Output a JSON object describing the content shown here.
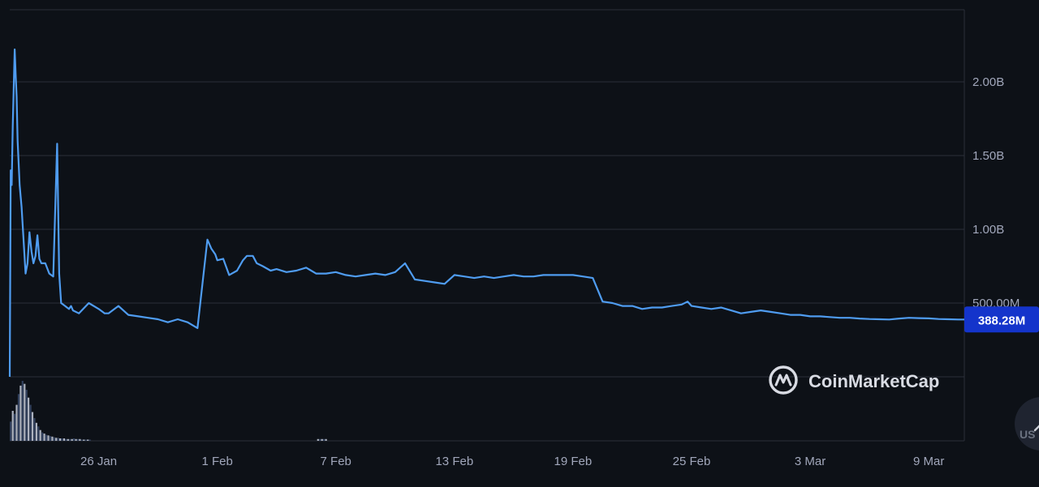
{
  "chart_data": {
    "type": "line",
    "y_ticks": [
      {
        "value": 500000000,
        "label": "500.00M"
      },
      {
        "value": 1000000000,
        "label": "1.00B"
      },
      {
        "value": 1500000000,
        "label": "1.50B"
      },
      {
        "value": 2000000000,
        "label": "2.00B"
      }
    ],
    "x_ticks": [
      {
        "day": 5,
        "label": "26 Jan"
      },
      {
        "day": 11,
        "label": "1 Feb"
      },
      {
        "day": 17,
        "label": "7 Feb"
      },
      {
        "day": 23,
        "label": "13 Feb"
      },
      {
        "day": 29,
        "label": "19 Feb"
      },
      {
        "day": 35,
        "label": "25 Feb"
      },
      {
        "day": 41,
        "label": "3 Mar"
      },
      {
        "day": 47,
        "label": "9 Mar"
      }
    ],
    "ylim": [
      0,
      2500000000
    ],
    "xlim": [
      0.5,
      48.8
    ],
    "grid": true,
    "line_color": "#4f9cf0",
    "last_value_label": "388.28M",
    "last_value": 388280000,
    "series": [
      {
        "x": [
          0.5,
          0.55,
          0.6,
          0.65,
          0.75,
          0.8,
          0.85,
          0.9,
          1.0,
          1.1,
          1.3,
          1.4,
          1.5,
          1.6,
          1.7,
          1.8,
          1.9,
          2.0,
          2.1,
          2.3,
          2.5,
          2.7,
          2.9,
          3.0,
          3.1,
          3.2,
          3.3,
          3.4,
          3.5,
          3.6,
          3.7,
          4.0,
          4.5,
          5.0,
          5.3,
          5.5,
          6.0,
          6.5,
          7.0,
          7.5,
          8.0,
          8.5,
          9.0,
          9.5,
          10.0,
          10.5,
          10.7,
          10.9,
          11.0,
          11.3,
          11.6,
          12.0,
          12.3,
          12.5,
          12.8,
          13.0,
          13.3,
          13.7,
          14.0,
          14.5,
          15.0,
          15.5,
          16.0,
          16.5,
          17.0,
          17.5,
          18.0,
          18.5,
          19.0,
          19.5,
          20.0,
          20.5,
          21.0,
          21.5,
          22.0,
          22.5,
          23.0,
          23.5,
          24.0,
          24.5,
          25.0,
          25.5,
          26.0,
          26.5,
          27.0,
          27.5,
          28.0,
          28.5,
          29.0,
          29.5,
          30.0,
          30.5,
          31.0,
          31.5,
          32.0,
          32.5,
          33.0,
          33.5,
          34.0,
          34.5,
          34.8,
          35.0,
          35.5,
          36.0,
          36.5,
          37.0,
          37.5,
          38.0,
          38.5,
          39.0,
          39.5,
          40.0,
          40.5,
          41.0,
          41.5,
          42.0,
          42.5,
          43.0,
          43.5,
          44.0,
          44.5,
          45.0,
          45.5,
          46.0,
          46.5,
          47.0,
          47.5,
          48.0,
          48.5,
          48.8
        ],
        "y": [
          0,
          1400000000,
          1300000000,
          1700000000,
          2220000000,
          2050000000,
          1900000000,
          1600000000,
          1300000000,
          1150000000,
          700000000,
          770000000,
          980000000,
          850000000,
          770000000,
          820000000,
          960000000,
          800000000,
          770000000,
          770000000,
          700000000,
          680000000,
          1580000000,
          700000000,
          500000000,
          490000000,
          480000000,
          470000000,
          460000000,
          480000000,
          450000000,
          430000000,
          500000000,
          460000000,
          430000000,
          430000000,
          480000000,
          420000000,
          410000000,
          400000000,
          390000000,
          370000000,
          390000000,
          370000000,
          330000000,
          930000000,
          870000000,
          830000000,
          790000000,
          800000000,
          690000000,
          720000000,
          790000000,
          820000000,
          820000000,
          770000000,
          750000000,
          720000000,
          730000000,
          710000000,
          720000000,
          740000000,
          700000000,
          700000000,
          710000000,
          690000000,
          680000000,
          690000000,
          700000000,
          690000000,
          710000000,
          770000000,
          660000000,
          650000000,
          640000000,
          630000000,
          690000000,
          680000000,
          670000000,
          680000000,
          670000000,
          680000000,
          690000000,
          680000000,
          680000000,
          690000000,
          690000000,
          690000000,
          690000000,
          680000000,
          670000000,
          510000000,
          500000000,
          480000000,
          480000000,
          460000000,
          470000000,
          470000000,
          480000000,
          490000000,
          510000000,
          480000000,
          470000000,
          460000000,
          470000000,
          450000000,
          430000000,
          440000000,
          450000000,
          440000000,
          430000000,
          420000000,
          420000000,
          410000000,
          410000000,
          405000000,
          400000000,
          400000000,
          395000000,
          392000000,
          390000000,
          388280000,
          395000000,
          400000000,
          398000000,
          396000000,
          392000000,
          390000000,
          388280000,
          388280000
        ]
      }
    ],
    "volume": {
      "x": [
        0.55,
        0.65,
        0.75,
        0.85,
        0.95,
        1.05,
        1.15,
        1.25,
        1.35,
        1.45,
        1.55,
        1.65,
        1.75,
        1.85,
        1.95,
        2.05,
        2.15,
        2.25,
        2.35,
        2.45,
        2.55,
        2.65,
        2.75,
        2.85,
        2.95,
        3.05,
        3.15,
        3.25,
        3.35,
        3.45,
        3.55,
        3.65,
        3.75,
        3.85,
        3.95,
        4.05,
        4.15,
        4.25,
        4.35,
        4.45,
        4.55,
        16.1,
        16.2,
        16.3,
        16.4,
        16.5
      ],
      "y": [
        0.32,
        0.5,
        0.45,
        0.6,
        0.78,
        0.92,
        1.0,
        0.95,
        0.85,
        0.72,
        0.6,
        0.48,
        0.38,
        0.3,
        0.24,
        0.18,
        0.14,
        0.12,
        0.1,
        0.09,
        0.08,
        0.07,
        0.06,
        0.05,
        0.05,
        0.04,
        0.04,
        0.04,
        0.03,
        0.03,
        0.03,
        0.03,
        0.04,
        0.03,
        0.03,
        0.03,
        0.02,
        0.02,
        0.02,
        0.02,
        0.02,
        0.03,
        0.03,
        0.03,
        0.03,
        0.03
      ]
    }
  },
  "watermark": {
    "text": "CoinMarketCap"
  },
  "currency_button": {
    "text": "US",
    "icon": "pencil-icon"
  }
}
